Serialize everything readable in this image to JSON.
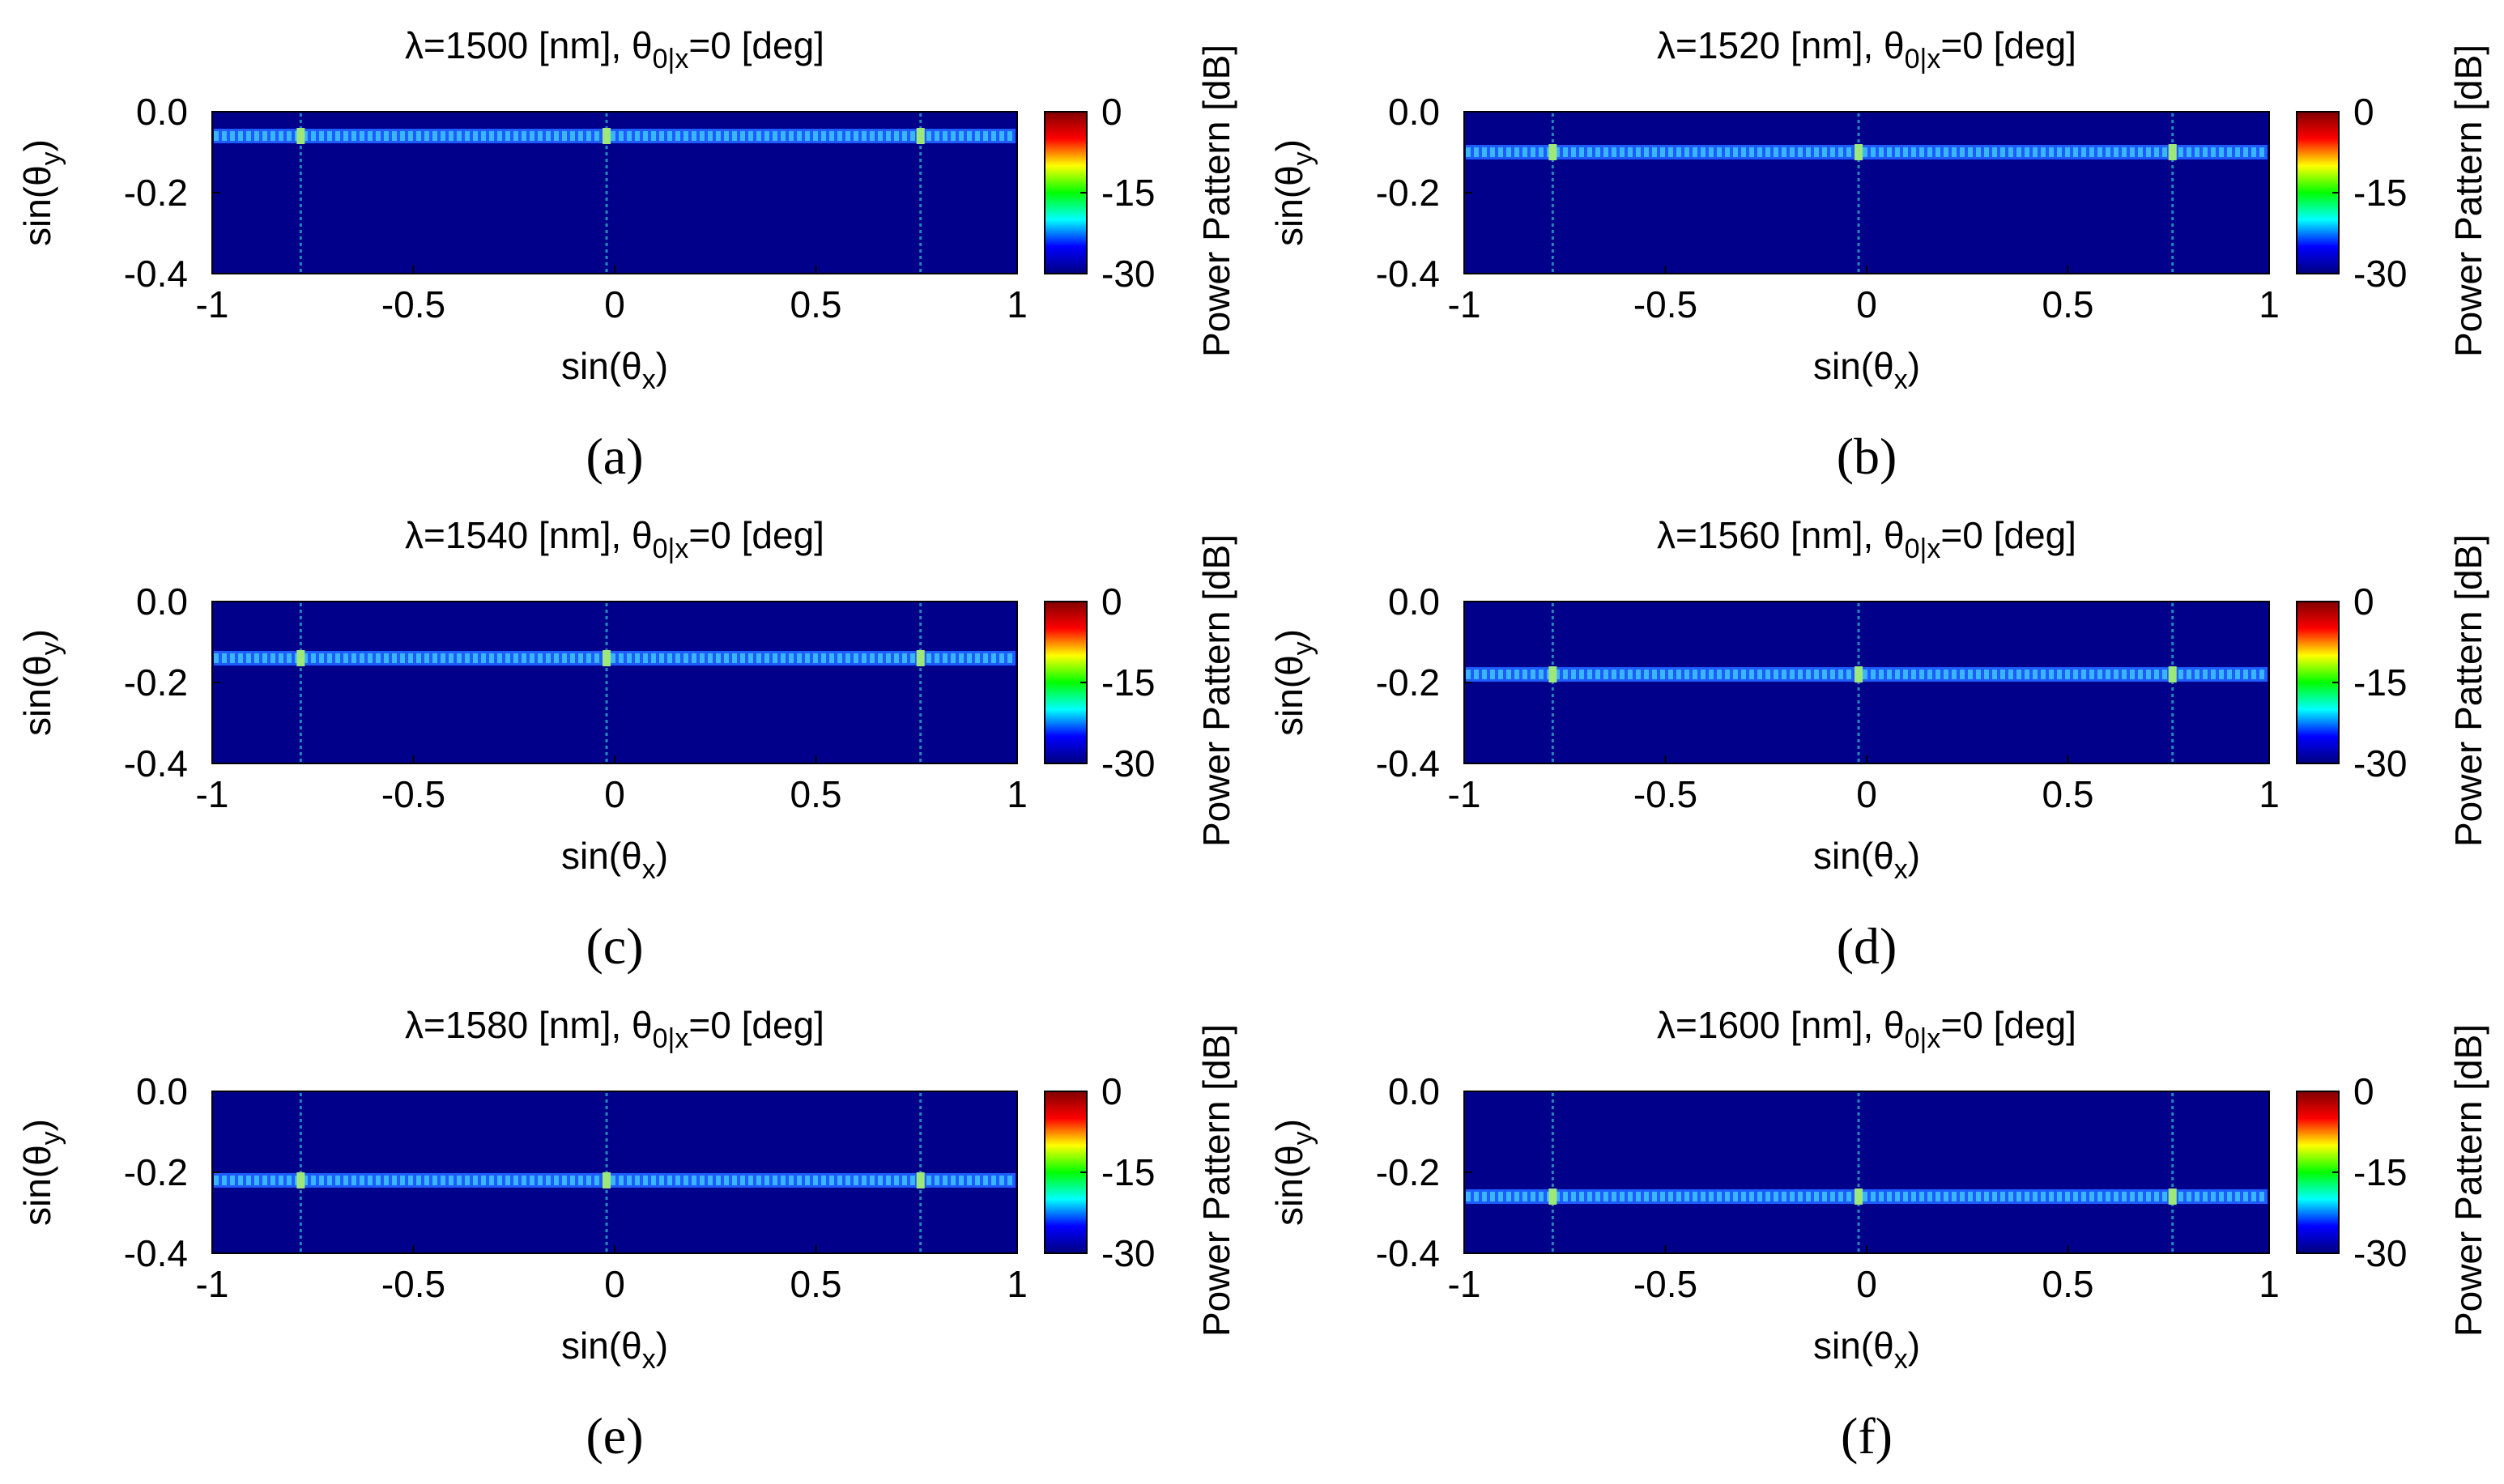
{
  "figure": {
    "colormap_stops": [
      "#00007f",
      "#0000ff",
      "#00ffff",
      "#00ff00",
      "#ffff00",
      "#ff0000",
      "#7f0000"
    ],
    "background_color": "#00008b",
    "band_color": "#38b6ff",
    "panel_labels": [
      "(a)",
      "(b)",
      "(c)",
      "(d)",
      "(e)",
      "(f)"
    ]
  },
  "chart_data": [
    {
      "type": "heatmap",
      "id": "a",
      "title": {
        "prefix": "λ=1500 [nm], θ",
        "sub": "0|x",
        "suffix": "=0 [deg]"
      },
      "wavelength_nm": 1500,
      "theta0_deg": 0,
      "xlabel": {
        "text": "sin(θ",
        "sub": "x",
        "close": ")"
      },
      "ylabel": {
        "text": "sin(θ",
        "sub": "y",
        "close": ")"
      },
      "xlim": [
        -1,
        1
      ],
      "ylim": [
        -0.4,
        0
      ],
      "xticks": [
        -1,
        -0.5,
        0,
        0.5,
        1
      ],
      "xtick_labels": [
        "-1",
        "-0.5",
        "0",
        "0.5",
        "1"
      ],
      "yticks": [
        0,
        -0.2,
        -0.4
      ],
      "ytick_labels": [
        "0.0",
        "-0.2",
        "-0.4"
      ],
      "colorbar": {
        "label": "Power Pattern [dB]",
        "range": [
          -30,
          0
        ],
        "ticks": [
          0,
          -15,
          -30
        ],
        "tick_labels": [
          "0",
          "-15",
          "-30"
        ]
      },
      "beam_row_sin_theta_y": -0.06,
      "grating_lobes_sin_theta_x": [
        -0.78,
        -0.02,
        0.76
      ]
    },
    {
      "type": "heatmap",
      "id": "b",
      "title": {
        "prefix": "λ=1520 [nm], θ",
        "sub": "0|x",
        "suffix": "=0 [deg]"
      },
      "wavelength_nm": 1520,
      "theta0_deg": 0,
      "xlabel": {
        "text": "sin(θ",
        "sub": "x",
        "close": ")"
      },
      "ylabel": {
        "text": "sin(θ",
        "sub": "y",
        "close": ")"
      },
      "xlim": [
        -1,
        1
      ],
      "ylim": [
        -0.4,
        0
      ],
      "xticks": [
        -1,
        -0.5,
        0,
        0.5,
        1
      ],
      "xtick_labels": [
        "-1",
        "-0.5",
        "0",
        "0.5",
        "1"
      ],
      "yticks": [
        0,
        -0.2,
        -0.4
      ],
      "ytick_labels": [
        "0.0",
        "-0.2",
        "-0.4"
      ],
      "colorbar": {
        "label": "Power Pattern [dB]",
        "range": [
          -30,
          0
        ],
        "ticks": [
          0,
          -15,
          -30
        ],
        "tick_labels": [
          "0",
          "-15",
          "-30"
        ]
      },
      "beam_row_sin_theta_y": -0.1,
      "grating_lobes_sin_theta_x": [
        -0.78,
        -0.02,
        0.76
      ]
    },
    {
      "type": "heatmap",
      "id": "c",
      "title": {
        "prefix": "λ=1540 [nm], θ",
        "sub": "0|x",
        "suffix": "=0 [deg]"
      },
      "wavelength_nm": 1540,
      "theta0_deg": 0,
      "xlabel": {
        "text": "sin(θ",
        "sub": "x",
        "close": ")"
      },
      "ylabel": {
        "text": "sin(θ",
        "sub": "y",
        "close": ")"
      },
      "xlim": [
        -1,
        1
      ],
      "ylim": [
        -0.4,
        0
      ],
      "xticks": [
        -1,
        -0.5,
        0,
        0.5,
        1
      ],
      "xtick_labels": [
        "-1",
        "-0.5",
        "0",
        "0.5",
        "1"
      ],
      "yticks": [
        0,
        -0.2,
        -0.4
      ],
      "ytick_labels": [
        "0.0",
        "-0.2",
        "-0.4"
      ],
      "colorbar": {
        "label": "Power Pattern [dB]",
        "range": [
          -30,
          0
        ],
        "ticks": [
          0,
          -15,
          -30
        ],
        "tick_labels": [
          "0",
          "-15",
          "-30"
        ]
      },
      "beam_row_sin_theta_y": -0.14,
      "grating_lobes_sin_theta_x": [
        -0.78,
        -0.02,
        0.76
      ]
    },
    {
      "type": "heatmap",
      "id": "d",
      "title": {
        "prefix": "λ=1560 [nm], θ",
        "sub": "0|x",
        "suffix": "=0 [deg]"
      },
      "wavelength_nm": 1560,
      "theta0_deg": 0,
      "xlabel": {
        "text": "sin(θ",
        "sub": "x",
        "close": ")"
      },
      "ylabel": {
        "text": "sin(θ",
        "sub": "y",
        "close": ")"
      },
      "xlim": [
        -1,
        1
      ],
      "ylim": [
        -0.4,
        0
      ],
      "xticks": [
        -1,
        -0.5,
        0,
        0.5,
        1
      ],
      "xtick_labels": [
        "-1",
        "-0.5",
        "0",
        "0.5",
        "1"
      ],
      "yticks": [
        0,
        -0.2,
        -0.4
      ],
      "ytick_labels": [
        "0.0",
        "-0.2",
        "-0.4"
      ],
      "colorbar": {
        "label": "Power Pattern [dB]",
        "range": [
          -30,
          0
        ],
        "ticks": [
          0,
          -15,
          -30
        ],
        "tick_labels": [
          "0",
          "-15",
          "-30"
        ]
      },
      "beam_row_sin_theta_y": -0.18,
      "grating_lobes_sin_theta_x": [
        -0.78,
        -0.02,
        0.76
      ]
    },
    {
      "type": "heatmap",
      "id": "e",
      "title": {
        "prefix": "λ=1580 [nm], θ",
        "sub": "0|x",
        "suffix": "=0 [deg]"
      },
      "wavelength_nm": 1580,
      "theta0_deg": 0,
      "xlabel": {
        "text": "sin(θ",
        "sub": "x",
        "close": ")"
      },
      "ylabel": {
        "text": "sin(θ",
        "sub": "y",
        "close": ")"
      },
      "xlim": [
        -1,
        1
      ],
      "ylim": [
        -0.4,
        0
      ],
      "xticks": [
        -1,
        -0.5,
        0,
        0.5,
        1
      ],
      "xtick_labels": [
        "-1",
        "-0.5",
        "0",
        "0.5",
        "1"
      ],
      "yticks": [
        0,
        -0.2,
        -0.4
      ],
      "ytick_labels": [
        "0.0",
        "-0.2",
        "-0.4"
      ],
      "colorbar": {
        "label": "Power Pattern [dB]",
        "range": [
          -30,
          0
        ],
        "ticks": [
          0,
          -15,
          -30
        ],
        "tick_labels": [
          "0",
          "-15",
          "-30"
        ]
      },
      "beam_row_sin_theta_y": -0.22,
      "grating_lobes_sin_theta_x": [
        -0.78,
        -0.02,
        0.76
      ]
    },
    {
      "type": "heatmap",
      "id": "f",
      "title": {
        "prefix": "λ=1600 [nm], θ",
        "sub": "0|x",
        "suffix": "=0 [deg]"
      },
      "wavelength_nm": 1600,
      "theta0_deg": 0,
      "xlabel": {
        "text": "sin(θ",
        "sub": "x",
        "close": ")"
      },
      "ylabel": {
        "text": "sin(θ",
        "sub": "y",
        "close": ")"
      },
      "xlim": [
        -1,
        1
      ],
      "ylim": [
        -0.4,
        0
      ],
      "xticks": [
        -1,
        -0.5,
        0,
        0.5,
        1
      ],
      "xtick_labels": [
        "-1",
        "-0.5",
        "0",
        "0.5",
        "1"
      ],
      "yticks": [
        0,
        -0.2,
        -0.4
      ],
      "ytick_labels": [
        "0.0",
        "-0.2",
        "-0.4"
      ],
      "colorbar": {
        "label": "Power Pattern [dB]",
        "range": [
          -30,
          0
        ],
        "ticks": [
          0,
          -15,
          -30
        ],
        "tick_labels": [
          "0",
          "-15",
          "-30"
        ]
      },
      "beam_row_sin_theta_y": -0.26,
      "grating_lobes_sin_theta_x": [
        -0.78,
        -0.02,
        0.76
      ]
    }
  ]
}
